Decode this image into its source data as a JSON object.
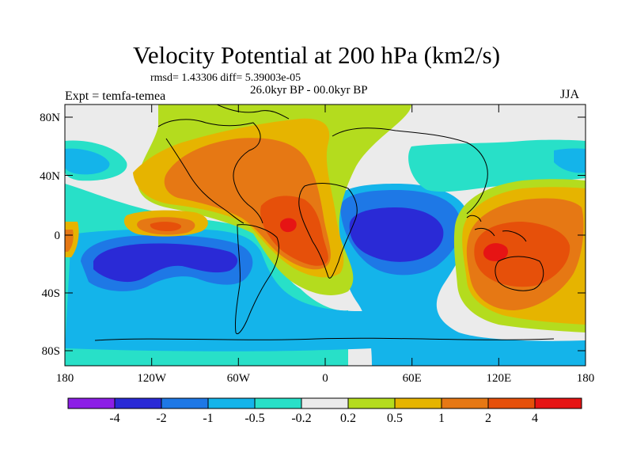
{
  "title": "Velocity Potential at 200 hPa (km2/s)",
  "stats": "rmsd= 1.43306 diff= 5.39003e-05",
  "periods": "26.0kyr BP - 00.0kyr BP",
  "experiment": "Expt = temfa-temea",
  "season": "JJA",
  "map": {
    "projection": "cylindrical equidistant",
    "lon_range": [
      -180,
      180
    ],
    "lat_range": [
      -90,
      90
    ],
    "lon_ticks": [
      "180",
      "120W",
      "60W",
      "0",
      "60E",
      "120E",
      "180"
    ],
    "lat_ticks": [
      "80N",
      "40N",
      "0",
      "40S",
      "80S"
    ]
  },
  "colorbar": {
    "labels": [
      "-4",
      "-2",
      "-1",
      "-0.5",
      "-0.2",
      "0.2",
      "0.5",
      "1",
      "2",
      "4"
    ],
    "colors": [
      "#8c1ee6",
      "#2a2ad6",
      "#1e78e6",
      "#14b4ea",
      "#28e0c8",
      "#ebebeb",
      "#b4dc1e",
      "#e6b400",
      "#e67814",
      "#e6500a",
      "#e61414"
    ]
  },
  "chart_data": {
    "type": "heatmap",
    "title": "Velocity Potential at 200 hPa (km2/s)",
    "units": "km2/s",
    "levels": [
      -4,
      -2,
      -1,
      -0.5,
      -0.2,
      0.2,
      0.5,
      1,
      2,
      4
    ],
    "features": [
      {
        "region": "Central/South Pacific",
        "sign": "negative",
        "min_level": -2
      },
      {
        "region": "Indian Ocean / East Africa",
        "sign": "negative",
        "min_level": -2
      },
      {
        "region": "Equatorial Atlantic / West Africa",
        "sign": "positive",
        "max_level": 4
      },
      {
        "region": "Maritime Continent / Western Pacific",
        "sign": "positive",
        "max_level": 4
      },
      {
        "region": "Eastern tropical Pacific",
        "sign": "positive",
        "max_level": 2
      }
    ]
  }
}
